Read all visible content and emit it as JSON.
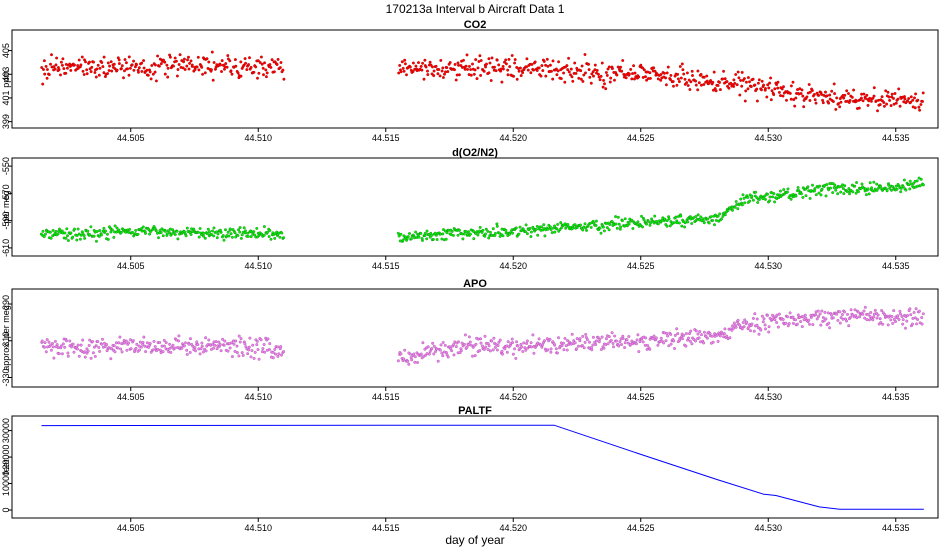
{
  "figure": {
    "title": "170213a   Interval b Aircraft Data 1",
    "xlabel": "day of year"
  },
  "chart_data": [
    {
      "type": "scatter",
      "title": "CO2",
      "ylabel": "ppm",
      "color": "#ff0000",
      "outline": "#8b0000",
      "xlim": [
        44.5005,
        44.5365
      ],
      "ylim": [
        398.8,
        406.4
      ],
      "xticks": [
        "44.505",
        "44.510",
        "44.515",
        "44.520",
        "44.525",
        "44.530",
        "44.535"
      ],
      "yticks": [
        "399",
        "401",
        "403",
        "405"
      ],
      "segments": [
        {
          "x": [
            44.5015,
            44.503,
            44.505,
            44.507,
            44.509,
            44.511
          ],
          "y": [
            403.6,
            403.7,
            403.6,
            403.7,
            403.6,
            403.5
          ]
        },
        {
          "x": [
            44.5155,
            44.5175,
            44.52,
            44.5225,
            44.525,
            44.5275,
            44.53,
            44.532,
            44.534,
            44.5361
          ],
          "y": [
            403.6,
            403.6,
            403.5,
            403.3,
            403.0,
            402.5,
            401.8,
            401.1,
            400.9,
            400.8
          ]
        }
      ],
      "spread": 0.7
    },
    {
      "type": "scatter",
      "title": "d(O2/N2)",
      "ylabel": "per meg",
      "color": "#00ee00",
      "outline": "#1f5f1f",
      "xlim": [
        44.5005,
        44.5365
      ],
      "ylim": [
        -613,
        -547
      ],
      "xticks": [
        "44.505",
        "44.510",
        "44.515",
        "44.520",
        "44.525",
        "44.530",
        "44.535"
      ],
      "yticks": [
        "-610",
        "-590",
        "-570",
        "-550"
      ],
      "segments": [
        {
          "x": [
            44.5015,
            44.5035,
            44.506,
            44.5085,
            44.511
          ],
          "y": [
            -600,
            -599,
            -598,
            -599,
            -600
          ]
        },
        {
          "x": [
            44.5155,
            44.518,
            44.5205,
            44.523,
            44.5255,
            44.528,
            44.529,
            44.5305,
            44.5325,
            44.5345,
            44.5361
          ],
          "y": [
            -602,
            -599,
            -597,
            -594,
            -591,
            -589,
            -575,
            -571,
            -566,
            -567,
            -563
          ]
        }
      ],
      "spread": 3.0
    },
    {
      "type": "scatter",
      "title": "APO",
      "ylabel": "approx. per meg",
      "color": "#ee82ee",
      "outline": "#8b3a8b",
      "xlim": [
        44.5005,
        44.5365
      ],
      "ylim": [
        -333,
        -284
      ],
      "xticks": [
        "44.505",
        "44.510",
        "44.515",
        "44.520",
        "44.525",
        "44.530",
        "44.535"
      ],
      "yticks": [
        "-330",
        "-310",
        "-290"
      ],
      "segments": [
        {
          "x": [
            44.5015,
            44.5035,
            44.506,
            44.5085,
            44.511
          ],
          "y": [
            -313,
            -314,
            -313,
            -313,
            -314
          ]
        },
        {
          "x": [
            44.5155,
            44.518,
            44.5205,
            44.523,
            44.5255,
            44.528,
            44.529,
            44.531,
            44.533,
            44.5361
          ],
          "y": [
            -320,
            -313,
            -313,
            -311,
            -310,
            -308,
            -301,
            -298,
            -296,
            -298
          ]
        }
      ],
      "spread": 3.5
    },
    {
      "type": "line",
      "title": "PALTF",
      "ylabel": "feet",
      "color": "#0000ff",
      "xlim": [
        44.5005,
        44.5365
      ],
      "ylim": [
        -1500,
        34000
      ],
      "xticks": [
        "44.505",
        "44.510",
        "44.515",
        "44.520",
        "44.525",
        "44.530",
        "44.535"
      ],
      "yticks": [
        "0",
        "10000",
        "20000",
        "30000"
      ],
      "x": [
        44.5015,
        44.51,
        44.515,
        44.5216,
        44.525,
        44.528,
        44.5298,
        44.5303,
        44.532,
        44.5328,
        44.5361
      ],
      "y": [
        31900,
        31950,
        32000,
        32050,
        21000,
        11500,
        6000,
        5500,
        1200,
        300,
        300
      ]
    }
  ]
}
